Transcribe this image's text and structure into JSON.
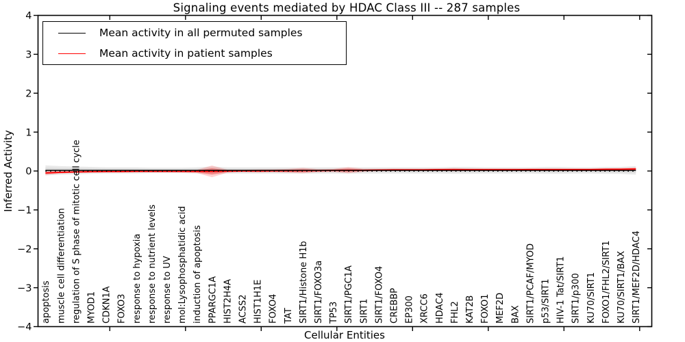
{
  "title": "Signaling events mediated by HDAC Class III -- 287 samples",
  "axes": {
    "ylabel": "Inferred Activity",
    "xlabel": "Cellular Entities"
  },
  "legend": {
    "position": "upper left",
    "items": [
      {
        "label": "Mean activity in all permuted samples",
        "color": "#000000"
      },
      {
        "label": "Mean activity in patient samples",
        "color": "#ff0000"
      }
    ]
  },
  "chart_data": {
    "type": "line",
    "title": "Signaling events mediated by HDAC Class III -- 287 samples",
    "xlabel": "Cellular Entities",
    "ylabel": "Inferred Activity",
    "ylim": [
      -4,
      4
    ],
    "yticks": [
      -4,
      -3,
      -2,
      -1,
      0,
      1,
      2,
      3,
      4
    ],
    "ytick_labels": [
      "−4",
      "−3",
      "−2",
      "−1",
      "0",
      "1",
      "2",
      "3",
      "4"
    ],
    "xtick_units": [
      5,
      10,
      15,
      20,
      25,
      30,
      35,
      40
    ],
    "grid": false,
    "legend_position": "upper left",
    "categories": [
      "apoptosis",
      "muscle cell differentiation",
      "regulation of S phase of mitotic cell cycle",
      "MYOD1",
      "CDKN1A",
      "FOXO3",
      "response to hypoxia",
      "response to nutrient levels",
      "response to UV",
      "mol:Lysophosphatidic acid",
      "induction of apoptosis",
      "PPARGC1A",
      "HIST2H4A",
      "ACSS2",
      "HIST1H1E",
      "FOXO4",
      "TAT",
      "SIRT1/Histone H1b",
      "SIRT1/FOXO3a",
      "TP53",
      "SIRT1/PGC1A",
      "SIRT1",
      "SIRT1/FOXO4",
      "CREBBP",
      "EP300",
      "XRCC6",
      "HDAC4",
      "FHL2",
      "KAT2B",
      "FOXO1",
      "MEF2D",
      "BAX",
      "SIRT1/PCAF/MYOD",
      "p53/SIRT1",
      "HIV-1 Tat/SIRT1",
      "SIRT1/p300",
      "KU70/SIRT1",
      "FOXO1/FHL2/SIRT1",
      "KU70/SIRT1/BAX",
      "SIRT1/MEF2D/HDAC4"
    ],
    "series": [
      {
        "name": "Mean activity in all permuted samples",
        "color": "#000000",
        "style": "solid",
        "values": [
          0.015,
          0.015,
          0.015,
          0.015,
          0.015,
          0.015,
          0.015,
          0.015,
          0.015,
          0.015,
          0.015,
          0.015,
          0.015,
          0.015,
          0.015,
          0.015,
          0.015,
          0.015,
          0.015,
          0.015,
          0.015,
          0.015,
          0.015,
          0.015,
          0.015,
          0.015,
          0.015,
          0.015,
          0.015,
          0.015,
          0.015,
          0.015,
          0.015,
          0.015,
          0.015,
          0.015,
          0.015,
          0.015,
          0.015,
          0.015
        ]
      },
      {
        "name": "Mean activity in patient samples",
        "color": "#ff0000",
        "style": "solid",
        "values": [
          -0.05,
          -0.035,
          -0.025,
          -0.02,
          -0.015,
          -0.015,
          -0.01,
          -0.01,
          -0.01,
          -0.01,
          -0.01,
          -0.01,
          -0.005,
          0,
          0,
          0.005,
          0.005,
          0.01,
          0.01,
          0.015,
          0.02,
          0.02,
          0.025,
          0.03,
          0.03,
          0.03,
          0.035,
          0.035,
          0.035,
          0.035,
          0.035,
          0.035,
          0.04,
          0.04,
          0.04,
          0.04,
          0.04,
          0.045,
          0.045,
          0.05
        ]
      }
    ],
    "zero_baseline": {
      "value": 0,
      "color": "#000000",
      "style": "dotted"
    },
    "bands": [
      {
        "name": "permuted samples spread",
        "center_series": 0,
        "color": "#e9e9e9",
        "inner_color": "#dbdbdb",
        "halfwidths": [
          0.13,
          0.11,
          0.1,
          0.09,
          0.08,
          0.08,
          0.08,
          0.07,
          0.07,
          0.07,
          0.08,
          0.1,
          0.08,
          0.08,
          0.08,
          0.08,
          0.08,
          0.08,
          0.08,
          0.08,
          0.08,
          0.08,
          0.08,
          0.08,
          0.08,
          0.08,
          0.08,
          0.09,
          0.09,
          0.08,
          0.08,
          0.08,
          0.08,
          0.09,
          0.09,
          0.08,
          0.08,
          0.09,
          0.09,
          0.11
        ]
      },
      {
        "name": "patient samples spread",
        "center_series": 1,
        "color": "#ff0000",
        "opacity": 0.18,
        "halfwidths": [
          0.05,
          0.03,
          0.02,
          0.02,
          0.02,
          0.02,
          0.02,
          0.02,
          0.02,
          0.03,
          0.04,
          0.15,
          0.04,
          0.03,
          0.04,
          0.04,
          0.05,
          0.07,
          0.04,
          0.04,
          0.08,
          0.04,
          0.03,
          0.03,
          0.03,
          0.03,
          0.03,
          0.04,
          0.03,
          0.03,
          0.03,
          0.03,
          0.02,
          0.02,
          0.02,
          0.02,
          0.02,
          0.02,
          0.03,
          0.04
        ]
      }
    ]
  }
}
